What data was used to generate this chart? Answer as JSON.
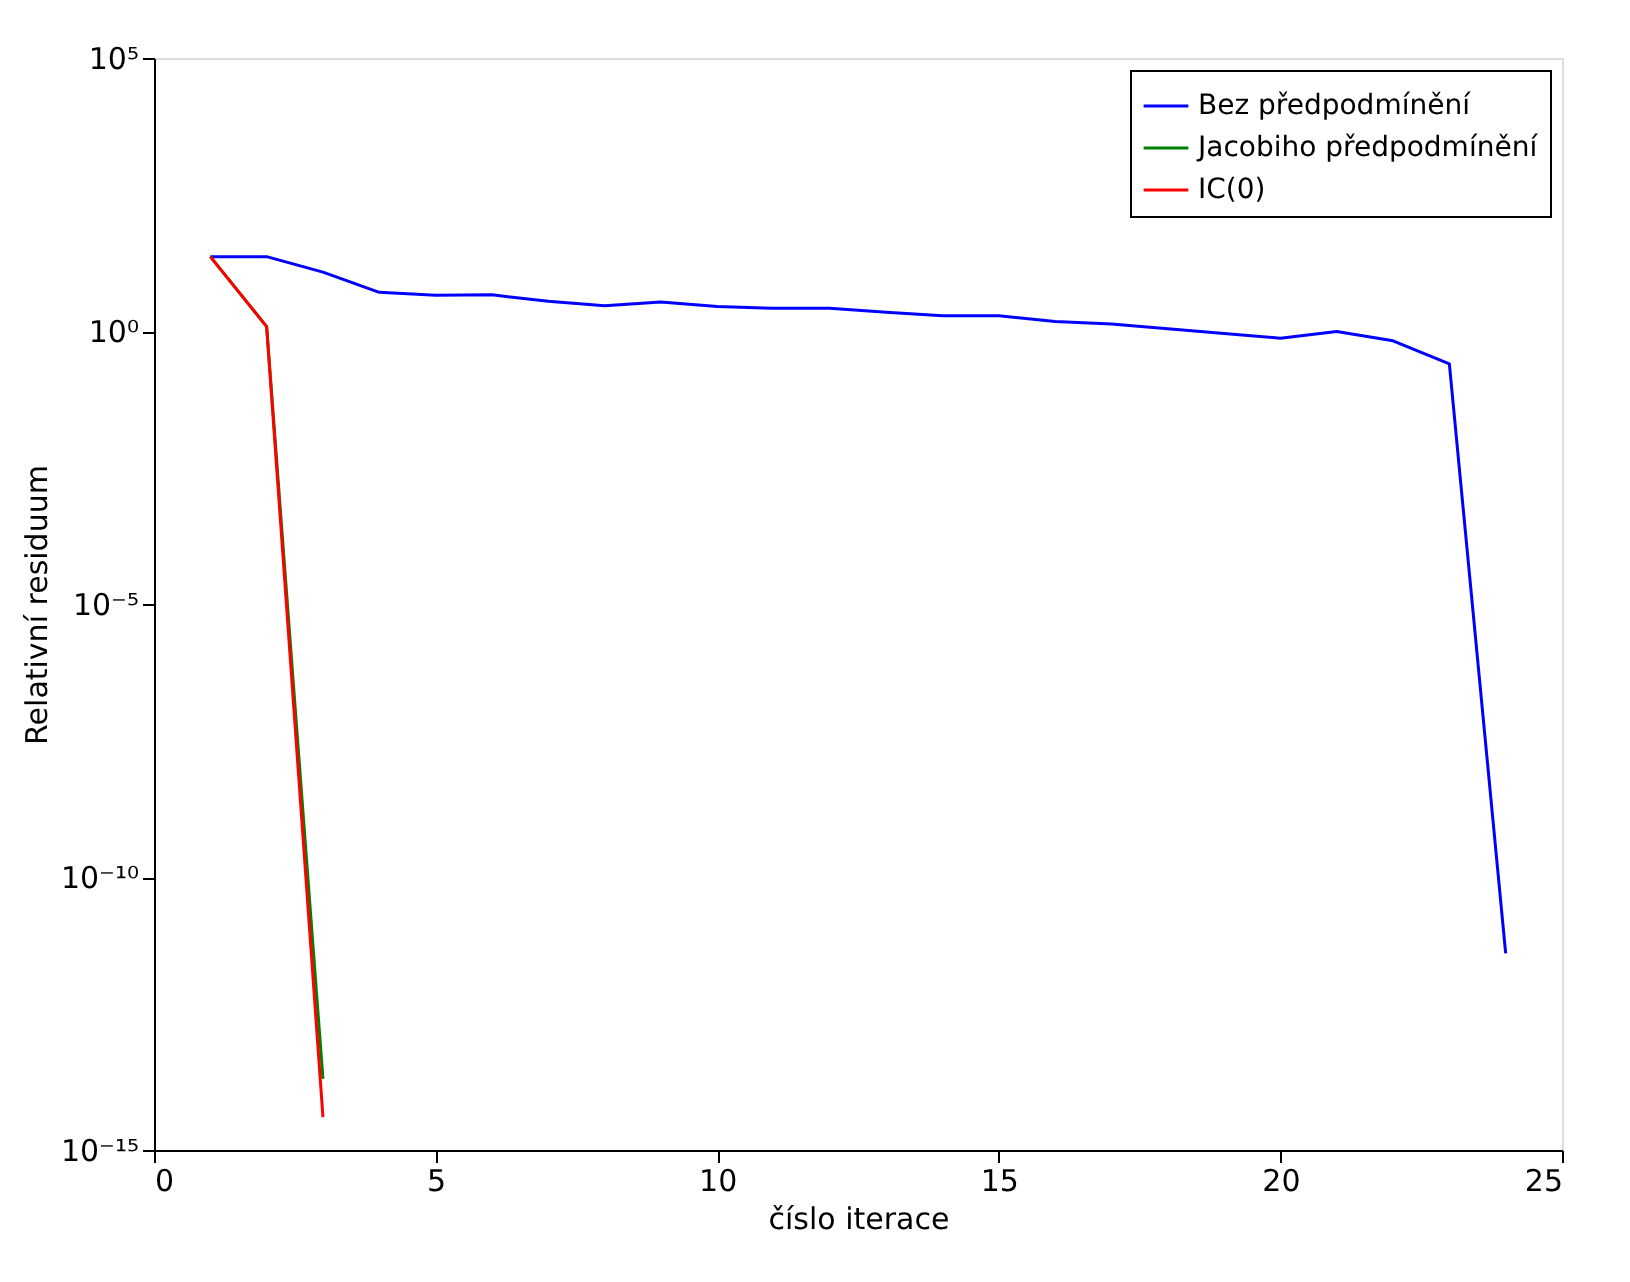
{
  "chart_data": {
    "type": "line",
    "xlabel": "číslo iterace",
    "ylabel": "Relativní residuum",
    "log": "y",
    "xlim": [
      0,
      25
    ],
    "xticks": [
      0,
      5,
      10,
      15,
      20,
      25
    ],
    "ylim": [
      1e-15,
      100000
    ],
    "yticks": [
      {
        "value": 1e-15,
        "label": "10⁻¹⁵"
      },
      {
        "value": 1e-10,
        "label": "10⁻¹⁰"
      },
      {
        "value": 1e-05,
        "label": "10⁻⁵"
      },
      {
        "value": 1,
        "label": "10⁰"
      },
      {
        "value": 100000,
        "label": "10⁵"
      }
    ],
    "grid": false,
    "legend": "top right",
    "marker": "none",
    "line_style": "solid",
    "series": [
      {
        "name": "Bez předpodmínění",
        "color": "#0000ff",
        "x": [
          1,
          2,
          3,
          4,
          5,
          6,
          7,
          8,
          9,
          10,
          11,
          12,
          13,
          14,
          15,
          16,
          17,
          18,
          19,
          20,
          21,
          22,
          23,
          24
        ],
        "values": [
          23,
          23,
          12,
          5.1,
          4.5,
          4.6,
          3.5,
          2.9,
          3.4,
          2.8,
          2.6,
          2.6,
          2.2,
          1.9,
          1.9,
          1.5,
          1.35,
          1.1,
          0.9,
          0.74,
          0.98,
          0.66,
          0.25,
          4e-12
        ]
      },
      {
        "name": "Jacobiho předpodmínění",
        "color": "#008000",
        "x": [
          1,
          2,
          3
        ],
        "values": [
          23,
          1.2,
          2e-14
        ]
      },
      {
        "name": "IC(0)",
        "color": "#ff0000",
        "x": [
          1,
          2,
          3
        ],
        "values": [
          23,
          1.2,
          4e-15
        ]
      }
    ]
  }
}
